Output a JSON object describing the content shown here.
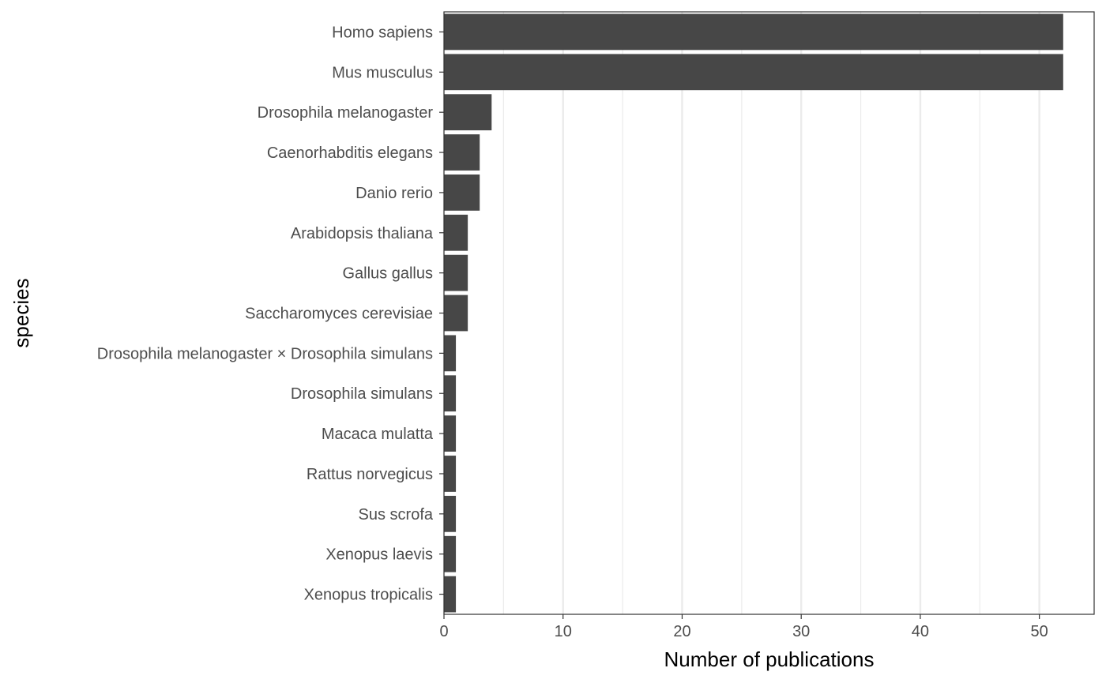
{
  "colors": {
    "bar": "#474747",
    "grid": "#ebebeb",
    "panel_border": "#333333",
    "tick_text": "#4d4d4d",
    "axis_title": "#000000",
    "background": "#ffffff"
  },
  "chart_data": {
    "type": "bar",
    "orientation": "horizontal",
    "categories": [
      "Homo sapiens",
      "Mus musculus",
      "Drosophila melanogaster",
      "Caenorhabditis elegans",
      "Danio rerio",
      "Arabidopsis thaliana",
      "Gallus gallus",
      "Saccharomyces cerevisiae",
      "Drosophila melanogaster × Drosophila simulans",
      "Drosophila simulans",
      "Macaca mulatta",
      "Rattus norvegicus",
      "Sus scrofa",
      "Xenopus laevis",
      "Xenopus tropicalis"
    ],
    "values": [
      52,
      52,
      4,
      3,
      3,
      2,
      2,
      2,
      1,
      1,
      1,
      1,
      1,
      1,
      1
    ],
    "xlabel": "Number of publications",
    "ylabel": "species",
    "xlim": [
      0,
      54.6
    ],
    "xticks": [
      0,
      10,
      20,
      30,
      40,
      50
    ],
    "xtick_labels": [
      "0",
      "10",
      "20",
      "30",
      "40",
      "50"
    ],
    "grid": "vertical",
    "legend": "none"
  }
}
